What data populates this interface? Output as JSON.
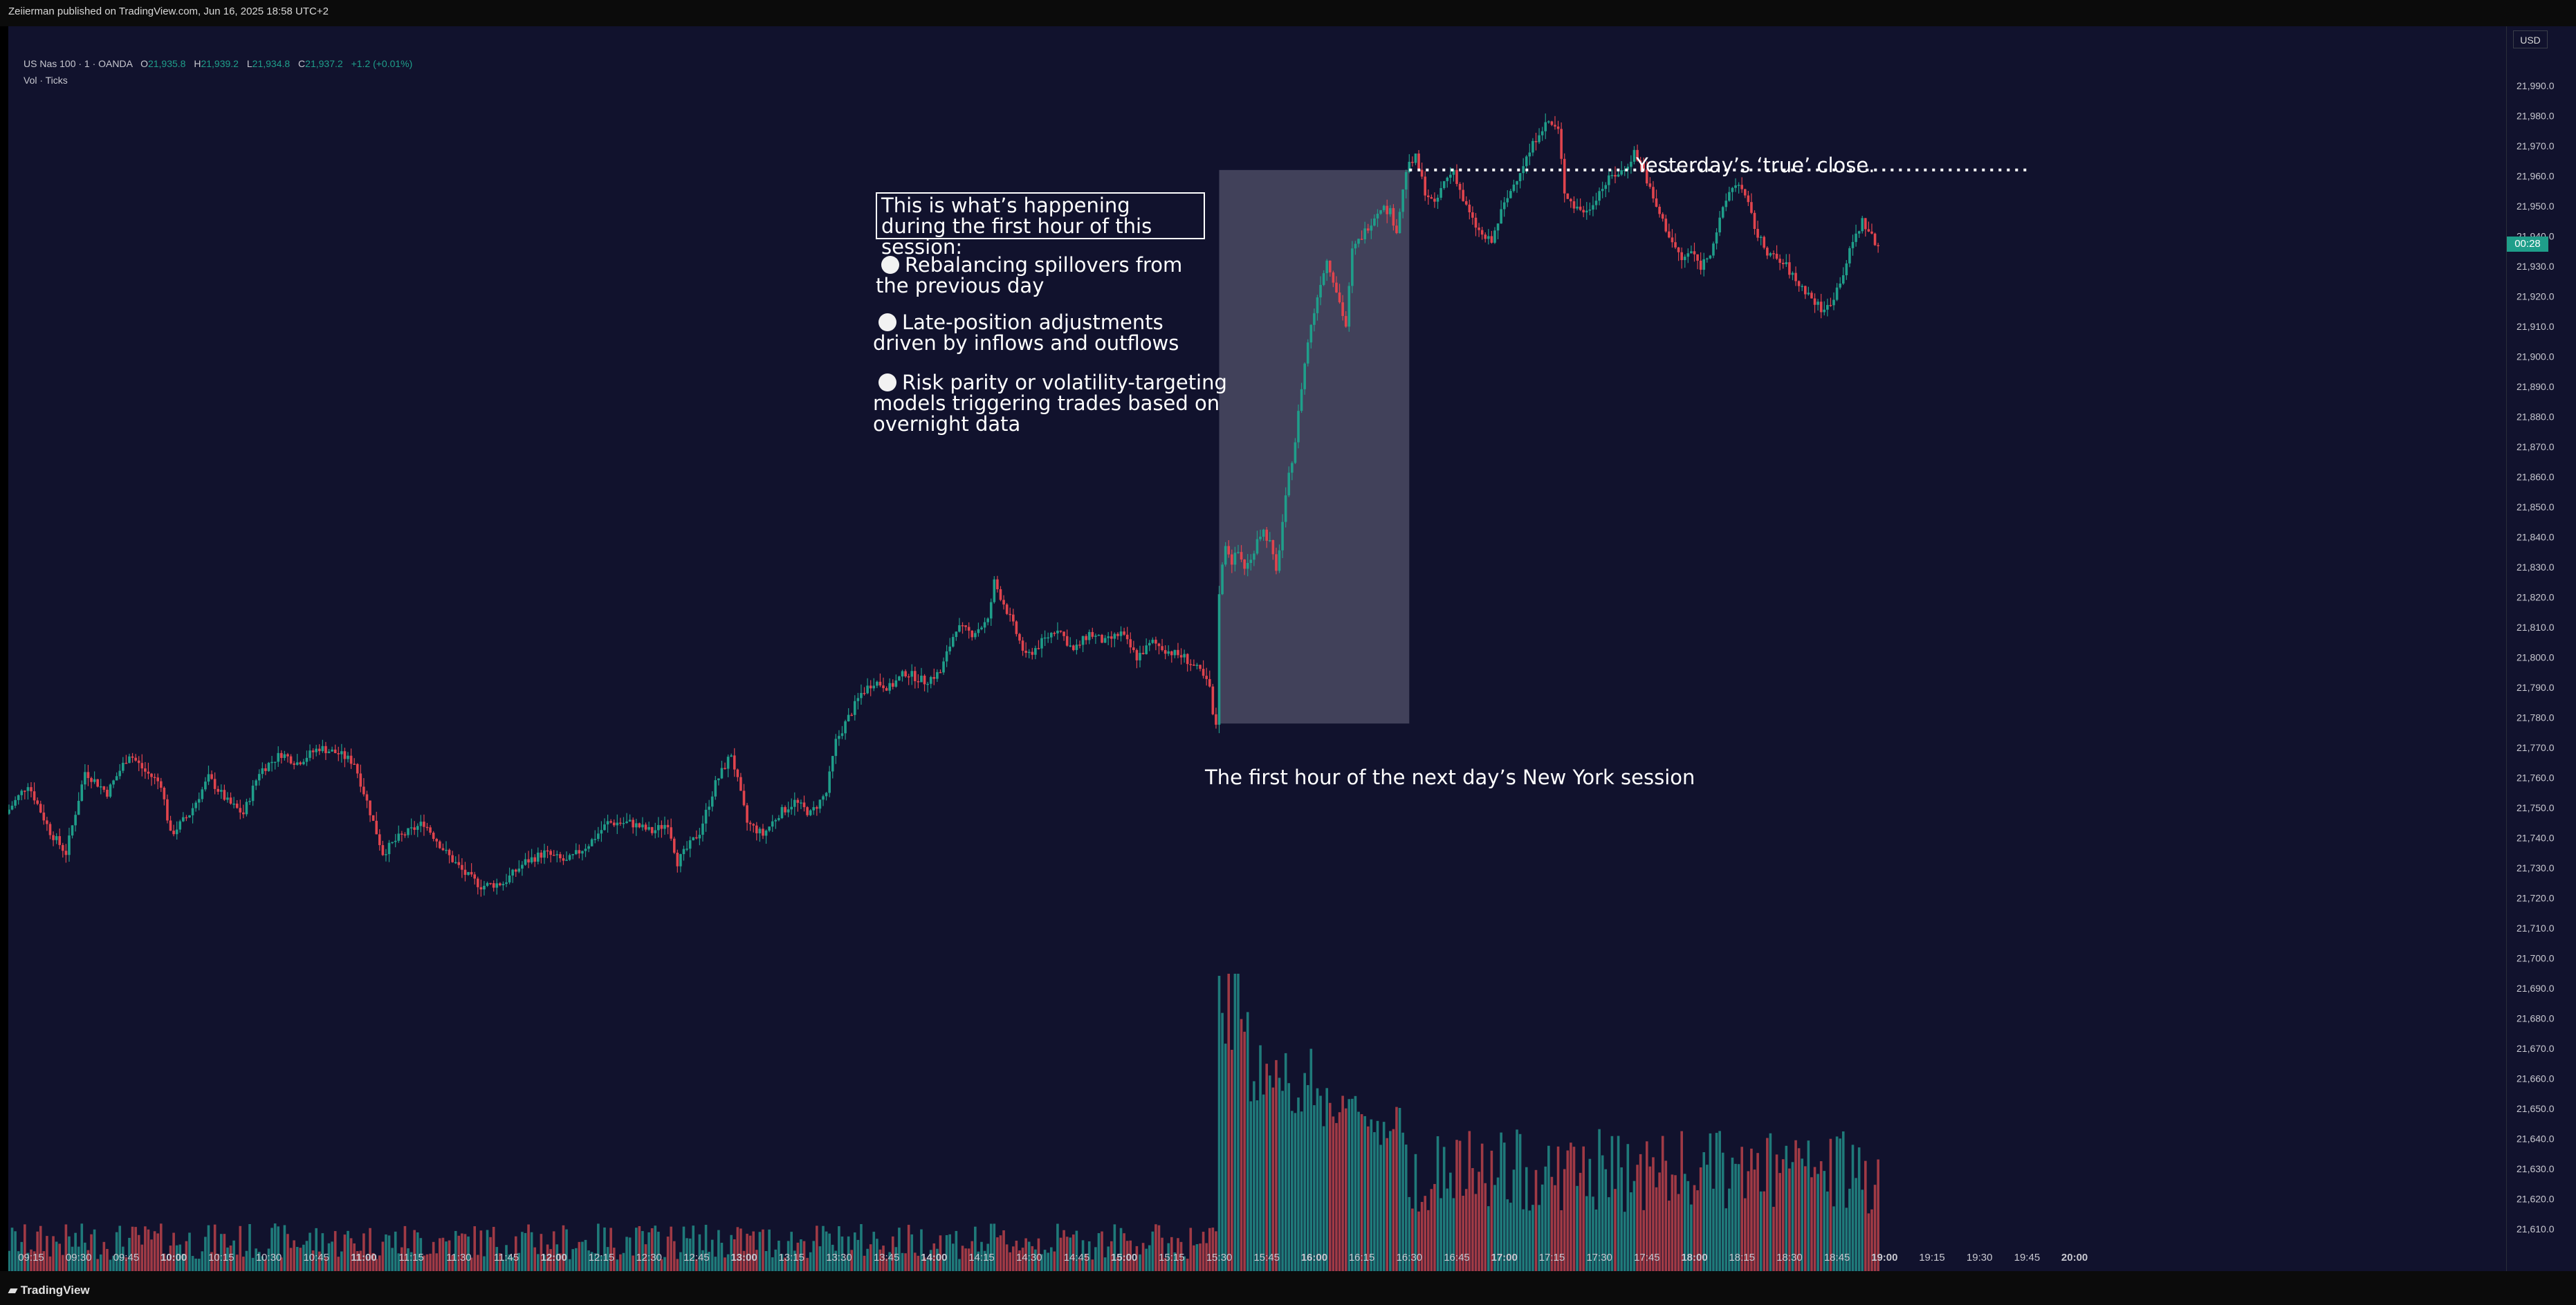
{
  "header": {
    "published": "Zeiierman published on TradingView.com, Jun 16, 2025 18:58 UTC+2"
  },
  "legend": {
    "symbol": "US Nas 100 · 1 · OANDA",
    "open_label": "O",
    "open": "21,935.8",
    "high_label": "H",
    "high": "21,939.2",
    "low_label": "L",
    "low": "21,934.8",
    "close_label": "C",
    "close": "21,937.2",
    "change": "+1.2 (+0.01%)",
    "volume_label": "Vol · Ticks"
  },
  "price_axis": {
    "currency_button": "USD",
    "countdown": "00:28"
  },
  "footer": {
    "brand": "TradingView"
  },
  "annotations": {
    "box_title": "This is what’s happening during the first hour of this session:",
    "bullets": [
      "Rebalancing spillovers from the previous day",
      "Late-position adjustments driven by inflows and outflows",
      "Risk parity or volatility-targeting models triggering trades based on overnight data"
    ],
    "close_label": "Yesterday’s ‘true’ close.",
    "session_label": "The first hour of the next day’s New York session"
  },
  "chart_data": {
    "type": "candlestick",
    "colors": {
      "up": "#1f9e8a",
      "down": "#e0444d",
      "volume_up": "#1f7a7a",
      "volume_down": "#a03a45",
      "background": "#11122d",
      "highlight": "#41415a"
    },
    "ylim": [
      21600,
      22000
    ],
    "yticks": [
      21610,
      21620,
      21630,
      21640,
      21650,
      21660,
      21670,
      21680,
      21690,
      21700,
      21710,
      21720,
      21730,
      21740,
      21750,
      21760,
      21770,
      21780,
      21790,
      21800,
      21810,
      21820,
      21830,
      21840,
      21850,
      21860,
      21870,
      21880,
      21890,
      21900,
      21910,
      21920,
      21930,
      21940,
      21950,
      21960,
      21970,
      21980,
      21990
    ],
    "xticks": [
      {
        "label": "09:15",
        "bold": false
      },
      {
        "label": "09:30",
        "bold": false
      },
      {
        "label": "09:45",
        "bold": false
      },
      {
        "label": "10:00",
        "bold": true
      },
      {
        "label": "10:15",
        "bold": false
      },
      {
        "label": "10:30",
        "bold": false
      },
      {
        "label": "10:45",
        "bold": false
      },
      {
        "label": "11:00",
        "bold": true
      },
      {
        "label": "11:15",
        "bold": false
      },
      {
        "label": "11:30",
        "bold": false
      },
      {
        "label": "11:45",
        "bold": false
      },
      {
        "label": "12:00",
        "bold": true
      },
      {
        "label": "12:15",
        "bold": false
      },
      {
        "label": "12:30",
        "bold": false
      },
      {
        "label": "12:45",
        "bold": false
      },
      {
        "label": "13:00",
        "bold": true
      },
      {
        "label": "13:15",
        "bold": false
      },
      {
        "label": "13:30",
        "bold": false
      },
      {
        "label": "13:45",
        "bold": false
      },
      {
        "label": "14:00",
        "bold": true
      },
      {
        "label": "14:15",
        "bold": false
      },
      {
        "label": "14:30",
        "bold": false
      },
      {
        "label": "14:45",
        "bold": false
      },
      {
        "label": "15:00",
        "bold": true
      },
      {
        "label": "15:15",
        "bold": false
      },
      {
        "label": "15:30",
        "bold": false
      },
      {
        "label": "15:45",
        "bold": false
      },
      {
        "label": "16:00",
        "bold": true
      },
      {
        "label": "16:15",
        "bold": false
      },
      {
        "label": "16:30",
        "bold": false
      },
      {
        "label": "16:45",
        "bold": false
      },
      {
        "label": "17:00",
        "bold": true
      },
      {
        "label": "17:15",
        "bold": false
      },
      {
        "label": "17:30",
        "bold": false
      },
      {
        "label": "17:45",
        "bold": false
      },
      {
        "label": "18:00",
        "bold": true
      },
      {
        "label": "18:15",
        "bold": false
      },
      {
        "label": "18:30",
        "bold": false
      },
      {
        "label": "18:45",
        "bold": false
      },
      {
        "label": "19:00",
        "bold": true
      },
      {
        "label": "19:15",
        "bold": false
      },
      {
        "label": "19:30",
        "bold": false
      },
      {
        "label": "19:45",
        "bold": false
      },
      {
        "label": "20:00",
        "bold": true
      }
    ],
    "price_path": [
      {
        "t": "09:08",
        "p": 21748
      },
      {
        "t": "09:15",
        "p": 21758
      },
      {
        "t": "09:22",
        "p": 21742
      },
      {
        "t": "09:27",
        "p": 21735
      },
      {
        "t": "09:33",
        "p": 21762
      },
      {
        "t": "09:40",
        "p": 21755
      },
      {
        "t": "09:47",
        "p": 21768
      },
      {
        "t": "09:52",
        "p": 21762
      },
      {
        "t": "09:57",
        "p": 21758
      },
      {
        "t": "10:00",
        "p": 21741
      },
      {
        "t": "10:06",
        "p": 21748
      },
      {
        "t": "10:12",
        "p": 21760
      },
      {
        "t": "10:18",
        "p": 21752
      },
      {
        "t": "10:23",
        "p": 21748
      },
      {
        "t": "10:28",
        "p": 21762
      },
      {
        "t": "10:35",
        "p": 21768
      },
      {
        "t": "10:40",
        "p": 21765
      },
      {
        "t": "10:47",
        "p": 21770
      },
      {
        "t": "10:53",
        "p": 21768
      },
      {
        "t": "10:58",
        "p": 21765
      },
      {
        "t": "11:02",
        "p": 21752
      },
      {
        "t": "11:07",
        "p": 21735
      },
      {
        "t": "11:12",
        "p": 21740
      },
      {
        "t": "11:20",
        "p": 21745
      },
      {
        "t": "11:27",
        "p": 21735
      },
      {
        "t": "11:33",
        "p": 21728
      },
      {
        "t": "11:38",
        "p": 21724
      },
      {
        "t": "11:45",
        "p": 21725
      },
      {
        "t": "11:52",
        "p": 21732
      },
      {
        "t": "11:58",
        "p": 21735
      },
      {
        "t": "12:05",
        "p": 21732
      },
      {
        "t": "12:12",
        "p": 21738
      },
      {
        "t": "12:18",
        "p": 21745
      },
      {
        "t": "12:25",
        "p": 21745
      },
      {
        "t": "12:32",
        "p": 21742
      },
      {
        "t": "12:37",
        "p": 21745
      },
      {
        "t": "12:40",
        "p": 21732
      },
      {
        "t": "12:47",
        "p": 21742
      },
      {
        "t": "12:52",
        "p": 21758
      },
      {
        "t": "12:57",
        "p": 21768
      },
      {
        "t": "13:02",
        "p": 21745
      },
      {
        "t": "13:07",
        "p": 21741
      },
      {
        "t": "13:12",
        "p": 21748
      },
      {
        "t": "13:17",
        "p": 21752
      },
      {
        "t": "13:22",
        "p": 21748
      },
      {
        "t": "13:27",
        "p": 21755
      },
      {
        "t": "13:30",
        "p": 21772
      },
      {
        "t": "13:33",
        "p": 21778
      },
      {
        "t": "13:38",
        "p": 21788
      },
      {
        "t": "13:42",
        "p": 21792
      },
      {
        "t": "13:47",
        "p": 21790
      },
      {
        "t": "13:52",
        "p": 21795
      },
      {
        "t": "13:58",
        "p": 21792
      },
      {
        "t": "14:03",
        "p": 21795
      },
      {
        "t": "14:08",
        "p": 21810
      },
      {
        "t": "14:13",
        "p": 21808
      },
      {
        "t": "14:18",
        "p": 21812
      },
      {
        "t": "14:20",
        "p": 21825
      },
      {
        "t": "14:23",
        "p": 21818
      },
      {
        "t": "14:27",
        "p": 21808
      },
      {
        "t": "14:30",
        "p": 21800
      },
      {
        "t": "14:35",
        "p": 21805
      },
      {
        "t": "14:40",
        "p": 21810
      },
      {
        "t": "14:45",
        "p": 21802
      },
      {
        "t": "14:50",
        "p": 21808
      },
      {
        "t": "14:55",
        "p": 21805
      },
      {
        "t": "15:00",
        "p": 21808
      },
      {
        "t": "15:05",
        "p": 21800
      },
      {
        "t": "15:10",
        "p": 21805
      },
      {
        "t": "15:15",
        "p": 21802
      },
      {
        "t": "15:20",
        "p": 21800
      },
      {
        "t": "15:25",
        "p": 21795
      },
      {
        "t": "15:28",
        "p": 21790
      },
      {
        "t": "15:29",
        "p": 21780
      },
      {
        "t": "15:30",
        "p": 21778
      },
      {
        "t": "15:31",
        "p": 21822
      },
      {
        "t": "15:33",
        "p": 21838
      },
      {
        "t": "15:35",
        "p": 21832
      },
      {
        "t": "15:37",
        "p": 21835
      },
      {
        "t": "15:39",
        "p": 21830
      },
      {
        "t": "15:41",
        "p": 21832
      },
      {
        "t": "15:43",
        "p": 21840
      },
      {
        "t": "15:45",
        "p": 21842
      },
      {
        "t": "15:47",
        "p": 21838
      },
      {
        "t": "15:49",
        "p": 21828
      },
      {
        "t": "15:51",
        "p": 21845
      },
      {
        "t": "15:53",
        "p": 21860
      },
      {
        "t": "15:55",
        "p": 21872
      },
      {
        "t": "15:57",
        "p": 21890
      },
      {
        "t": "15:59",
        "p": 21905
      },
      {
        "t": "16:01",
        "p": 21915
      },
      {
        "t": "16:03",
        "p": 21925
      },
      {
        "t": "16:05",
        "p": 21932
      },
      {
        "t": "16:07",
        "p": 21926
      },
      {
        "t": "16:09",
        "p": 21918
      },
      {
        "t": "16:11",
        "p": 21910
      },
      {
        "t": "16:13",
        "p": 21935
      },
      {
        "t": "16:16",
        "p": 21940
      },
      {
        "t": "16:19",
        "p": 21945
      },
      {
        "t": "16:22",
        "p": 21950
      },
      {
        "t": "16:25",
        "p": 21948
      },
      {
        "t": "16:27",
        "p": 21942
      },
      {
        "t": "16:29",
        "p": 21955
      },
      {
        "t": "16:30",
        "p": 21962
      },
      {
        "t": "16:33",
        "p": 21966
      },
      {
        "t": "16:36",
        "p": 21955
      },
      {
        "t": "16:39",
        "p": 21950
      },
      {
        "t": "16:42",
        "p": 21958
      },
      {
        "t": "16:45",
        "p": 21962
      },
      {
        "t": "16:48",
        "p": 21952
      },
      {
        "t": "16:51",
        "p": 21945
      },
      {
        "t": "16:54",
        "p": 21940
      },
      {
        "t": "16:57",
        "p": 21938
      },
      {
        "t": "17:00",
        "p": 21948
      },
      {
        "t": "17:03",
        "p": 21955
      },
      {
        "t": "17:06",
        "p": 21962
      },
      {
        "t": "17:09",
        "p": 21968
      },
      {
        "t": "17:12",
        "p": 21975
      },
      {
        "t": "17:15",
        "p": 21978
      },
      {
        "t": "17:18",
        "p": 21975
      },
      {
        "t": "17:20",
        "p": 21955
      },
      {
        "t": "17:23",
        "p": 21950
      },
      {
        "t": "17:27",
        "p": 21948
      },
      {
        "t": "17:31",
        "p": 21955
      },
      {
        "t": "17:35",
        "p": 21960
      },
      {
        "t": "17:39",
        "p": 21962
      },
      {
        "t": "17:42",
        "p": 21968
      },
      {
        "t": "17:45",
        "p": 21962
      },
      {
        "t": "17:48",
        "p": 21952
      },
      {
        "t": "17:51",
        "p": 21945
      },
      {
        "t": "17:54",
        "p": 21938
      },
      {
        "t": "17:57",
        "p": 21932
      },
      {
        "t": "18:00",
        "p": 21935
      },
      {
        "t": "18:03",
        "p": 21930
      },
      {
        "t": "18:06",
        "p": 21935
      },
      {
        "t": "18:09",
        "p": 21945
      },
      {
        "t": "18:12",
        "p": 21955
      },
      {
        "t": "18:15",
        "p": 21958
      },
      {
        "t": "18:18",
        "p": 21950
      },
      {
        "t": "18:21",
        "p": 21940
      },
      {
        "t": "18:24",
        "p": 21935
      },
      {
        "t": "18:27",
        "p": 21932
      },
      {
        "t": "18:30",
        "p": 21930
      },
      {
        "t": "18:33",
        "p": 21925
      },
      {
        "t": "18:36",
        "p": 21922
      },
      {
        "t": "18:39",
        "p": 21918
      },
      {
        "t": "18:42",
        "p": 21915
      },
      {
        "t": "18:45",
        "p": 21920
      },
      {
        "t": "18:48",
        "p": 21928
      },
      {
        "t": "18:51",
        "p": 21938
      },
      {
        "t": "18:54",
        "p": 21945
      },
      {
        "t": "18:57",
        "p": 21940
      },
      {
        "t": "18:58",
        "p": 21937
      }
    ],
    "volume": {
      "pre_session_level": 0.12,
      "session_levels": [
        1.0,
        0.75,
        0.72,
        0.65,
        0.6,
        0.55,
        0.5
      ],
      "post_session_level": 0.35
    },
    "annotations": {
      "highlight_window": [
        "15:30",
        "16:30"
      ],
      "highlight_price_range": [
        21778,
        21962
      ],
      "close_line": {
        "price": 21962,
        "from": "16:30",
        "to": "19:45"
      }
    }
  }
}
